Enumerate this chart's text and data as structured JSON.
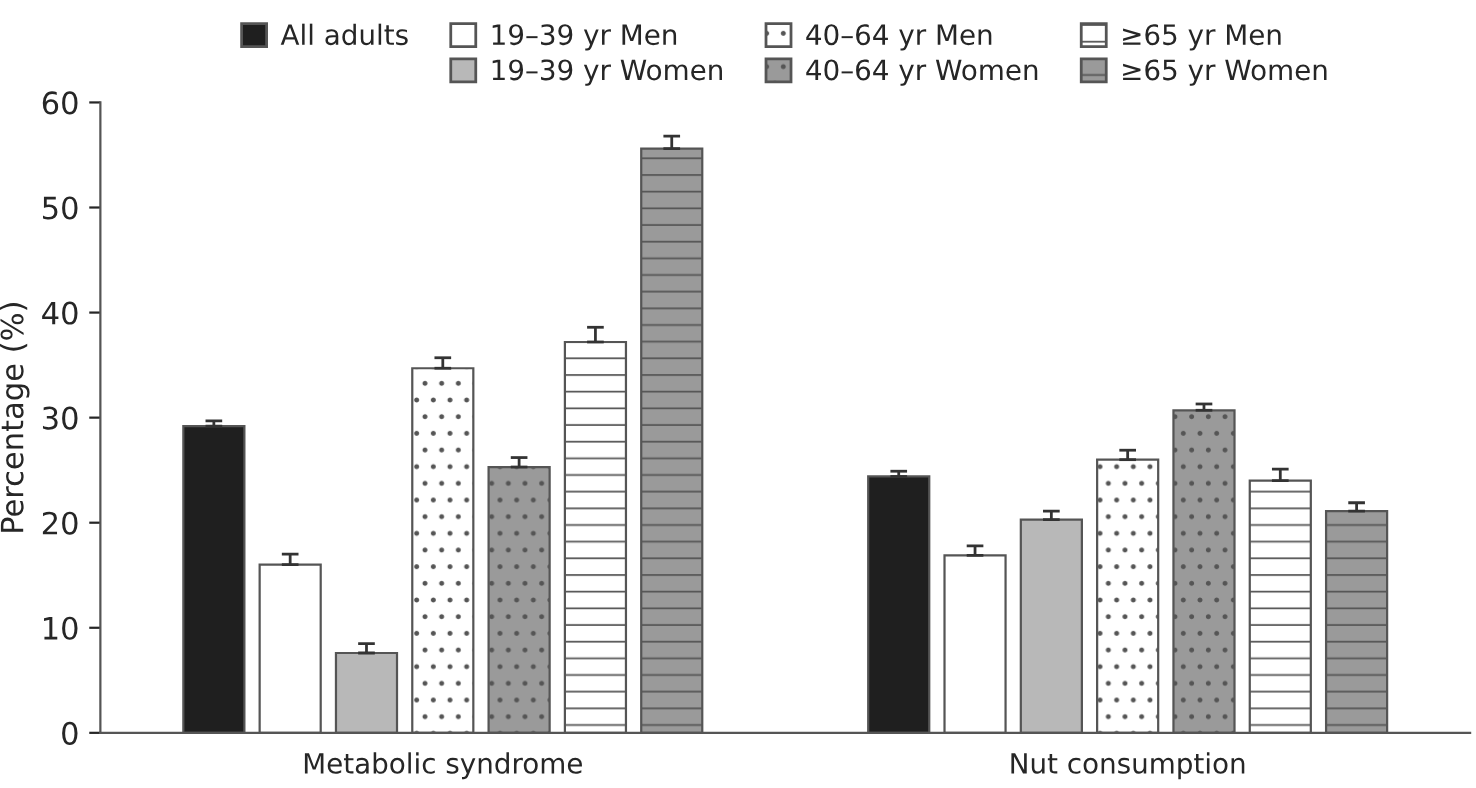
{
  "chart_data": {
    "type": "bar",
    "ylabel": "Percentage (%)",
    "categories": [
      "Metabolic syndrome",
      "Nut consumption"
    ],
    "series": [
      {
        "name": "All adults",
        "color": "#1f1f1f",
        "values": [
          29.2,
          24.4
        ],
        "errors": [
          [
            29.2,
            29.7
          ],
          [
            24.4,
            24.9
          ]
        ]
      },
      {
        "name": "19–39 yr Men",
        "color": "#ffffff",
        "values": [
          16.0,
          16.9
        ],
        "errors": [
          [
            16.0,
            17.0
          ],
          [
            16.9,
            17.8
          ]
        ]
      },
      {
        "name": "19–39 yr Women",
        "color": "#b8b8b8",
        "values": [
          7.6,
          20.3
        ],
        "errors": [
          [
            7.6,
            8.5
          ],
          [
            20.3,
            21.1
          ]
        ]
      },
      {
        "name": "40–64 yr Men",
        "color": "#ffffff",
        "values": [
          34.7,
          26.0
        ],
        "errors": [
          [
            34.7,
            35.7
          ],
          [
            26.0,
            26.9
          ]
        ]
      },
      {
        "name": "40–64 yr Women",
        "color": "#9a9a9a",
        "values": [
          25.3,
          30.7
        ],
        "errors": [
          [
            25.3,
            26.2
          ],
          [
            30.7,
            31.3
          ]
        ]
      },
      {
        "name": "≥65 yr Men",
        "color": "#ffffff",
        "values": [
          37.2,
          24.0
        ],
        "errors": [
          [
            37.2,
            38.6
          ],
          [
            24.0,
            25.1
          ]
        ]
      },
      {
        "name": "≥65 yr Women",
        "color": "#9a9a9a",
        "values": [
          55.6,
          21.1
        ],
        "errors": [
          [
            55.6,
            56.8
          ],
          [
            21.1,
            21.9
          ]
        ]
      }
    ],
    "ylim": [
      0,
      60
    ],
    "yticks": [
      0,
      10,
      20,
      30,
      40,
      50,
      60
    ],
    "grid": false,
    "legend": "top"
  }
}
